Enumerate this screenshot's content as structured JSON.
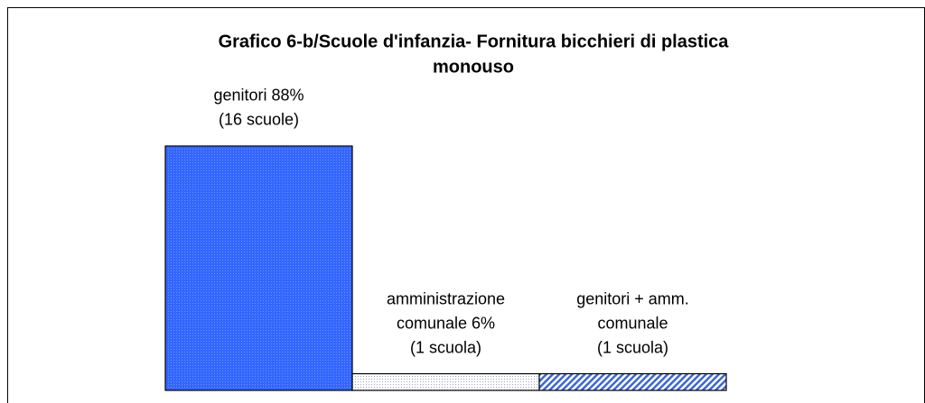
{
  "chart_data": {
    "type": "bar",
    "title": [
      "Grafico 6-b/Scuole d'infanzia- Fornitura bicchieri di plastica",
      "monouso"
    ],
    "categories": [
      [
        "genitori 88%",
        "(16 scuole)"
      ],
      [
        "amministrazione",
        "comunale 6%",
        "(1 scuola)"
      ],
      [
        "genitori + amm.",
        "comunale",
        "(1 scuola)"
      ]
    ],
    "values": [
      88,
      6,
      6
    ],
    "colors": [
      "#3366ff",
      "#ffffff",
      "#6f8fe0"
    ],
    "patterns": [
      "dots",
      "dots",
      "hatch"
    ],
    "ylim": [
      0,
      100
    ]
  }
}
